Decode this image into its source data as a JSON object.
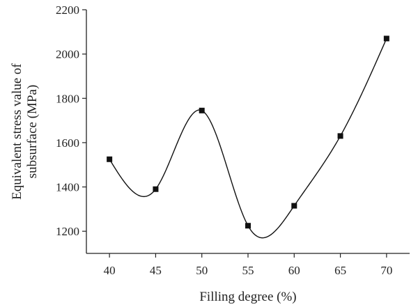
{
  "chart_data": {
    "type": "line",
    "title": "",
    "xlabel": "Filling degree (%)",
    "ylabel_lines": [
      "Equivalent stress value of",
      "subsurface (MPa)"
    ],
    "x": [
      40,
      45,
      50,
      55,
      60,
      65,
      70
    ],
    "series": [
      {
        "values": [
          1525,
          1390,
          1745,
          1225,
          1315,
          1630,
          2070
        ]
      }
    ],
    "xlim": [
      37.5,
      72.5
    ],
    "ylim": [
      1100,
      2200
    ],
    "xticks": [
      40,
      45,
      50,
      55,
      60,
      65,
      70
    ],
    "yticks": [
      1200,
      1400,
      1600,
      1800,
      2000,
      2200
    ],
    "grid": false,
    "legend": "none",
    "line_style": "smooth spline",
    "marker": "filled square",
    "colors": {
      "line": "#111111",
      "marker": "#111111",
      "axis": "#222222"
    }
  }
}
